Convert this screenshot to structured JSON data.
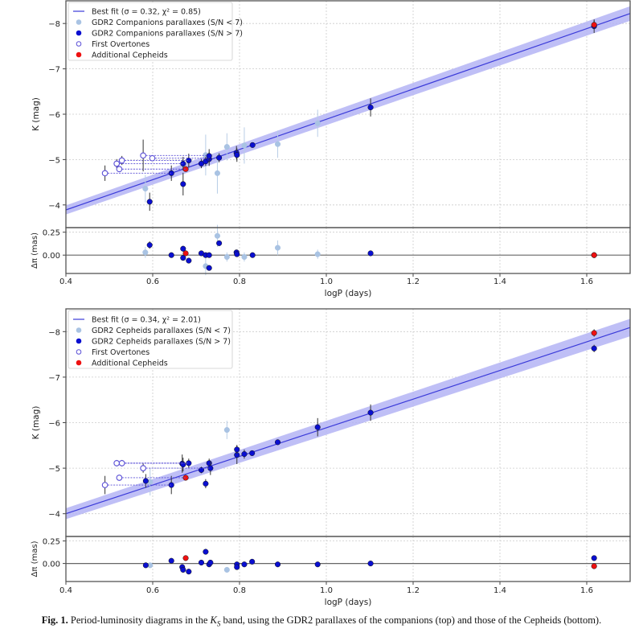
{
  "chart_data": [
    {
      "type": "scatter",
      "xlabel": "logP (days)",
      "ylabel": "K (mag)",
      "res_ylabel": "Δπ (mas)",
      "xlim": [
        0.4,
        1.7
      ],
      "ylim": [
        -3.5,
        -8.5
      ],
      "res_ylim": [
        -0.2,
        0.3
      ],
      "x_ticks": [
        "0.4",
        "0.6",
        "0.8",
        "1.0",
        "1.2",
        "1.4",
        "1.6"
      ],
      "y_ticks": [
        "−8",
        "−7",
        "−6",
        "−5",
        "−4"
      ],
      "res_y_ticks": [
        "0.25",
        "0.00"
      ],
      "grid": true,
      "legend": "top-left",
      "fit": {
        "label": "Best fit (σ = 0.32, χ² = 0.85)",
        "logP": [
          0.4,
          1.7
        ],
        "K": [
          -3.89,
          -8.22
        ],
        "band": 0.1,
        "color": "#3b3bd9"
      },
      "series": [
        {
          "name": "GDR2 Companions parallaxes (S/N < 7)",
          "color": "#a9c3e3",
          "marker": "filled",
          "points": [
            {
              "logP": 0.583,
              "K": -4.36,
              "K_err": 0.3,
              "dpi": 0.03,
              "dpi_err": 0.06
            },
            {
              "logP": 0.722,
              "K": -5.1,
              "K_err": 0.45,
              "dpi": -0.12,
              "dpi_err": 0.1
            },
            {
              "logP": 0.749,
              "K": -4.7,
              "K_err": 0.45,
              "dpi": 0.21,
              "dpi_err": 0.12
            },
            {
              "logP": 0.771,
              "K": -5.28,
              "K_err": 0.3,
              "dpi": -0.02,
              "dpi_err": 0.05
            },
            {
              "logP": 0.811,
              "K": -5.31,
              "K_err": 0.4,
              "dpi": -0.02,
              "dpi_err": 0.05
            },
            {
              "logP": 0.888,
              "K": -5.34,
              "K_err": 0.3,
              "dpi": 0.08,
              "dpi_err": 0.08
            },
            {
              "logP": 0.98,
              "K": -5.8,
              "K_err": 0.3,
              "dpi": 0.01,
              "dpi_err": 0.05
            }
          ]
        },
        {
          "name": "GDR2 Companions parallaxes (S/N > 7)",
          "color": "#0a0fd0",
          "marker": "filled",
          "points": [
            {
              "logP": 0.593,
              "K": -4.07,
              "K_err": 0.2,
              "dpi": 0.11,
              "dpi_err": 0.04
            },
            {
              "logP": 0.643,
              "K": -4.7,
              "K_err": 0.17,
              "dpi": 0.0,
              "dpi_err": 0.02
            },
            {
              "logP": 0.67,
              "K": -4.46,
              "K_err": 0.25,
              "dpi": 0.07,
              "dpi_err": 0.03
            },
            {
              "logP": 0.67,
              "K": -4.91,
              "K_err": 0.15,
              "dpi": -0.03,
              "dpi_err": 0.02
            },
            {
              "logP": 0.683,
              "K": -4.98,
              "K_err": 0.15,
              "dpi": -0.06,
              "dpi_err": 0.02
            },
            {
              "logP": 0.712,
              "K": -4.91,
              "K_err": 0.1,
              "dpi": 0.02,
              "dpi_err": 0.02
            },
            {
              "logP": 0.722,
              "K": -4.96,
              "K_err": 0.1,
              "dpi": 0.0,
              "dpi_err": 0.02
            },
            {
              "logP": 0.73,
              "K": -5.01,
              "K_err": 0.15,
              "dpi": -0.14,
              "dpi_err": 0.02
            },
            {
              "logP": 0.73,
              "K": -5.08,
              "K_err": 0.15,
              "dpi": 0.0,
              "dpi_err": 0.02
            },
            {
              "logP": 0.753,
              "K": -5.04,
              "K_err": 0.1,
              "dpi": 0.13,
              "dpi_err": 0.02
            },
            {
              "logP": 0.793,
              "K": -5.15,
              "K_err": 0.15,
              "dpi": 0.03,
              "dpi_err": 0.02
            },
            {
              "logP": 0.794,
              "K": -5.1,
              "K_err": 0.15,
              "dpi": 0.01,
              "dpi_err": 0.02
            },
            {
              "logP": 0.83,
              "K": -5.32,
              "K_err": 0.05,
              "dpi": 0.0,
              "dpi_err": 0.01
            },
            {
              "logP": 1.102,
              "K": -6.15,
              "K_err": 0.2,
              "dpi": 0.02,
              "dpi_err": 0.02
            },
            {
              "logP": 1.617,
              "K": -7.94,
              "K_err": 0.15,
              "dpi": 0.0,
              "dpi_err": 0.02
            }
          ]
        },
        {
          "name": "First Overtones",
          "color": "#5a4fd6",
          "marker": "open",
          "points": [
            {
              "logP": 0.49,
              "K": -4.7,
              "K_err": 0.17,
              "logP_F": 0.643
            },
            {
              "logP": 0.517,
              "K": -4.91,
              "K_err": 0.1,
              "logP_F": 0.67
            },
            {
              "logP": 0.523,
              "K": -4.79,
              "K_err": 0.05,
              "logP_F": 0.676
            },
            {
              "logP": 0.529,
              "K": -4.98,
              "K_err": 0.1,
              "logP_F": 0.683
            },
            {
              "logP": 0.578,
              "K": -5.09,
              "K_err": 0.35,
              "logP_F": 0.725
            },
            {
              "logP": 0.599,
              "K": -5.03,
              "K_err": 0.05,
              "logP_F": 0.73
            }
          ]
        },
        {
          "name": "Additional Cepheids",
          "color": "#ee1111",
          "marker": "filled",
          "points": [
            {
              "logP": 0.676,
              "K": -4.79,
              "K_err": 0.05,
              "dpi": 0.02,
              "dpi_err": 0.02
            },
            {
              "logP": 1.617,
              "K": -7.97,
              "K_err": 0.1,
              "dpi": 0.0,
              "dpi_err": 0.02
            }
          ]
        }
      ]
    },
    {
      "type": "scatter",
      "xlabel": "logP (days)",
      "ylabel": "K (mag)",
      "res_ylabel": "Δπ (mas)",
      "xlim": [
        0.4,
        1.7
      ],
      "ylim": [
        -3.5,
        -8.5
      ],
      "res_ylim": [
        -0.2,
        0.3
      ],
      "x_ticks": [
        "0.4",
        "0.6",
        "0.8",
        "1.0",
        "1.2",
        "1.4",
        "1.6"
      ],
      "y_ticks": [
        "−8",
        "−7",
        "−6",
        "−5",
        "−4"
      ],
      "res_y_ticks": [
        "0.25",
        "0.00"
      ],
      "grid": true,
      "legend": "top-left",
      "fit": {
        "label": "Best fit (σ = 0.34, χ² = 2.01)",
        "logP": [
          0.4,
          1.7
        ],
        "K": [
          -4.0,
          -8.09
        ],
        "band": 0.12,
        "color": "#3b3bd9"
      },
      "series": [
        {
          "name": "GDR2 Cepheids parallaxes (S/N < 7)",
          "color": "#a9c3e3",
          "marker": "filled",
          "points": [
            {
              "logP": 0.594,
              "K": -4.7,
              "K_err": 0.3,
              "dpi": -0.02,
              "dpi_err": 0.02
            },
            {
              "logP": 0.771,
              "K": -5.84,
              "K_err": 0.2,
              "dpi": -0.07,
              "dpi_err": 0.02
            }
          ]
        },
        {
          "name": "GDR2 Cepheids parallaxes (S/N > 7)",
          "color": "#0a0fd0",
          "marker": "filled",
          "points": [
            {
              "logP": 0.584,
              "K": -4.72,
              "K_err": 0.15,
              "dpi": -0.02,
              "dpi_err": 0.02
            },
            {
              "logP": 0.643,
              "K": -4.63,
              "K_err": 0.2,
              "dpi": 0.03,
              "dpi_err": 0.03
            },
            {
              "logP": 0.668,
              "K": -5.1,
              "K_err": 0.2,
              "dpi": -0.04,
              "dpi_err": 0.03
            },
            {
              "logP": 0.67,
              "K": -5.08,
              "K_err": 0.15,
              "dpi": -0.07,
              "dpi_err": 0.03
            },
            {
              "logP": 0.683,
              "K": -5.11,
              "K_err": 0.1,
              "dpi": -0.09,
              "dpi_err": 0.03
            },
            {
              "logP": 0.712,
              "K": -4.96,
              "K_err": 0.07,
              "dpi": 0.01,
              "dpi_err": 0.02
            },
            {
              "logP": 0.722,
              "K": -4.66,
              "K_err": 0.1,
              "dpi": 0.13,
              "dpi_err": 0.03
            },
            {
              "logP": 0.73,
              "K": -5.11,
              "K_err": 0.1,
              "dpi": -0.01,
              "dpi_err": 0.02
            },
            {
              "logP": 0.733,
              "K": -5.0,
              "K_err": 0.15,
              "dpi": 0.01,
              "dpi_err": 0.02
            },
            {
              "logP": 0.794,
              "K": -5.29,
              "K_err": 0.2,
              "dpi": -0.01,
              "dpi_err": 0.02
            },
            {
              "logP": 0.794,
              "K": -5.41,
              "K_err": 0.1,
              "dpi": -0.04,
              "dpi_err": 0.03
            },
            {
              "logP": 0.811,
              "K": -5.31,
              "K_err": 0.1,
              "dpi": -0.01,
              "dpi_err": 0.02
            },
            {
              "logP": 0.829,
              "K": -5.33,
              "K_err": 0.05,
              "dpi": 0.02,
              "dpi_err": 0.02
            },
            {
              "logP": 0.888,
              "K": -5.57,
              "K_err": 0.05,
              "dpi": -0.01,
              "dpi_err": 0.01
            },
            {
              "logP": 0.98,
              "K": -5.9,
              "K_err": 0.2,
              "dpi": -0.01,
              "dpi_err": 0.02
            },
            {
              "logP": 1.102,
              "K": -6.22,
              "K_err": 0.18,
              "dpi": 0.0,
              "dpi_err": 0.01
            },
            {
              "logP": 1.617,
              "K": -7.63,
              "K_err": 0.08,
              "dpi": 0.06,
              "dpi_err": 0.01
            }
          ]
        },
        {
          "name": "First Overtones",
          "color": "#5a4fd6",
          "marker": "open",
          "points": [
            {
              "logP": 0.49,
              "K": -4.63,
              "K_err": 0.2,
              "logP_F": 0.643
            },
            {
              "logP": 0.517,
              "K": -5.11,
              "K_err": 0.07,
              "logP_F": 0.67
            },
            {
              "logP": 0.529,
              "K": -5.11,
              "K_err": 0.07,
              "logP_F": 0.683
            },
            {
              "logP": 0.523,
              "K": -4.79,
              "K_err": 0.03,
              "logP_F": 0.676
            },
            {
              "logP": 0.578,
              "K": -5.0,
              "K_err": 0.1,
              "logP_F": 0.733
            }
          ]
        },
        {
          "name": "Additional Cepheids",
          "color": "#ee1111",
          "marker": "filled",
          "points": [
            {
              "logP": 0.676,
              "K": -4.79,
              "K_err": 0.03,
              "dpi": 0.06,
              "dpi_err": 0.02
            },
            {
              "logP": 1.617,
              "K": -7.97,
              "K_err": 0.08,
              "dpi": -0.03,
              "dpi_err": 0.02
            }
          ]
        }
      ]
    }
  ],
  "caption": {
    "label": "Fig. 1.",
    "text_before": " Period-luminosity diagrams in the ",
    "band": "K",
    "band_sub": "S",
    "text_after": " band, using the GDR2 parallaxes of the companions (top) and those of the Cepheids (bottom)."
  }
}
